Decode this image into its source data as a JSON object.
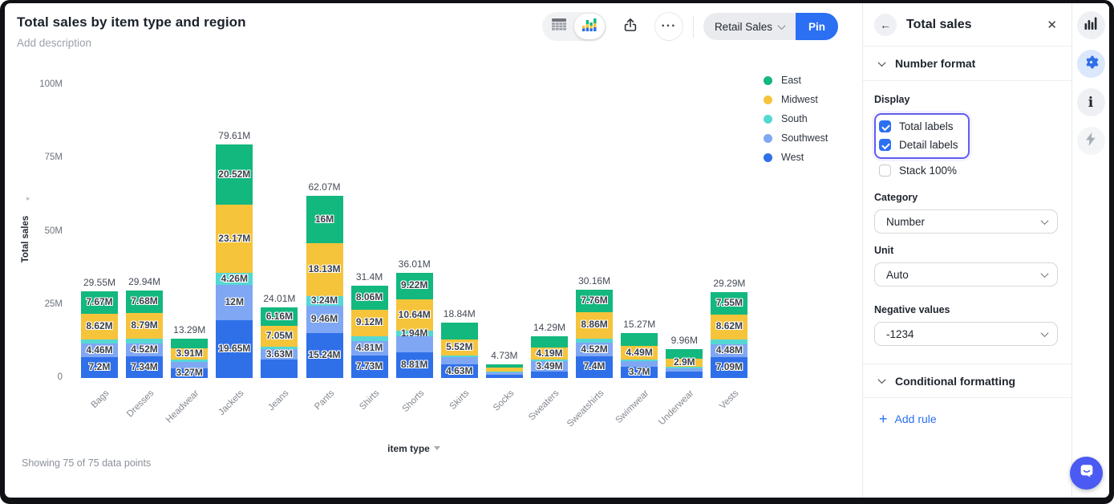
{
  "header": {
    "title": "Total sales by item type and region",
    "description_placeholder": "Add description",
    "more_label": "···",
    "dataset_button": "Retail Sales",
    "pin_button": "Pin"
  },
  "chart_data": {
    "type": "bar",
    "stacked": true,
    "title": "Total sales by item type and region",
    "xlabel": "item type",
    "ylabel": "Total sales",
    "yticks": [
      "100M",
      "75M",
      "50M",
      "25M",
      "0"
    ],
    "ylim": [
      0,
      104
    ],
    "grid": false,
    "legend_position": "right",
    "unit": "M",
    "categories": [
      "Bags",
      "Dresses",
      "Headwear",
      "Jackets",
      "Jeans",
      "Pants",
      "Shirts",
      "Shorts",
      "Skirts",
      "Socks",
      "Sweaters",
      "Sweatshirts",
      "Swimwear",
      "Underwear",
      "Vests"
    ],
    "series": [
      {
        "name": "East",
        "color": "#12b87e",
        "values": [
          7.67,
          7.68,
          3.2,
          20.52,
          6.16,
          16,
          8.06,
          9.22,
          5.6,
          1.1,
          3.9,
          7.76,
          4.4,
          3.3,
          7.55
        ]
      },
      {
        "name": "Midwest",
        "color": "#f5c43b",
        "values": [
          8.62,
          8.79,
          3.91,
          23.17,
          7.05,
          18.13,
          9.12,
          10.64,
          5.52,
          1.4,
          4.19,
          8.86,
          4.49,
          2.9,
          8.62
        ]
      },
      {
        "name": "South",
        "color": "#55d8d3",
        "values": [
          1.6,
          1.61,
          0.75,
          4.26,
          0.95,
          3.24,
          1.68,
          1.94,
          0.55,
          0.3,
          0.5,
          1.62,
          0.5,
          0.4,
          1.55
        ]
      },
      {
        "name": "Southwest",
        "color": "#7fa7f3",
        "values": [
          4.46,
          4.52,
          2.16,
          12,
          3.63,
          9.46,
          4.81,
          5.4,
          2.54,
          0.8,
          3.49,
          4.52,
          2.18,
          1.1,
          4.48
        ]
      },
      {
        "name": "West",
        "color": "#2f70e9",
        "values": [
          7.2,
          7.34,
          3.27,
          19.65,
          6.22,
          15.24,
          7.73,
          8.81,
          4.63,
          1.13,
          2.21,
          7.4,
          3.7,
          2.26,
          7.09
        ]
      }
    ],
    "totals": [
      "29.55M",
      "29.94M",
      "13.29M",
      "79.61M",
      "24.01M",
      "62.07M",
      "31.4M",
      "36.01M",
      "18.84M",
      "4.73M",
      "14.29M",
      "30.16M",
      "15.27M",
      "9.96M",
      "29.29M"
    ],
    "segment_labels": [
      [
        "7.67M",
        "8.62M",
        null,
        "4.46M",
        "7.2M"
      ],
      [
        "7.68M",
        "8.79M",
        null,
        "4.52M",
        "7.34M"
      ],
      [
        null,
        "3.91M",
        null,
        null,
        "3.27M"
      ],
      [
        "20.52M",
        "23.17M",
        "4.26M",
        "12M",
        "19.65M"
      ],
      [
        "6.16M",
        "7.05M",
        null,
        "3.63M",
        null
      ],
      [
        "16M",
        "18.13M",
        "3.24M",
        "9.46M",
        "15.24M"
      ],
      [
        "8.06M",
        "9.12M",
        null,
        "4.81M",
        "7.73M"
      ],
      [
        "9.22M",
        "10.64M",
        "1.94M",
        null,
        "8.81M"
      ],
      [
        null,
        "5.52M",
        null,
        null,
        "4.63M"
      ],
      [
        null,
        null,
        null,
        null,
        null
      ],
      [
        null,
        "4.19M",
        null,
        "3.49M",
        null
      ],
      [
        "7.76M",
        "8.86M",
        null,
        "4.52M",
        "7.4M"
      ],
      [
        null,
        "4.49M",
        null,
        null,
        "3.7M"
      ],
      [
        null,
        "2.9M",
        null,
        null,
        null
      ],
      [
        "7.55M",
        "8.62M",
        null,
        "4.48M",
        "7.09M"
      ]
    ]
  },
  "footer": {
    "showing": "Showing 75 of 75 data points"
  },
  "panel": {
    "title": "Total sales",
    "number_format_label": "Number format",
    "display_label": "Display",
    "display_options": [
      {
        "label": "Total labels",
        "checked": true
      },
      {
        "label": "Detail labels",
        "checked": true
      },
      {
        "label": "Stack 100%",
        "checked": false
      }
    ],
    "fields": [
      {
        "label": "Category",
        "value": "Number"
      },
      {
        "label": "Unit",
        "value": "Auto"
      },
      {
        "label": "Negative values",
        "value": "-1234"
      }
    ],
    "conditional_formatting_label": "Conditional formatting",
    "add_rule_label": "Add rule",
    "add_rule_plus": "+"
  },
  "colors": {
    "accent_blue": "#2b6ff3",
    "highlight_purple": "#625df0",
    "chat_bubble": "#4a5af2",
    "gear_active": "#2e6fe8"
  }
}
